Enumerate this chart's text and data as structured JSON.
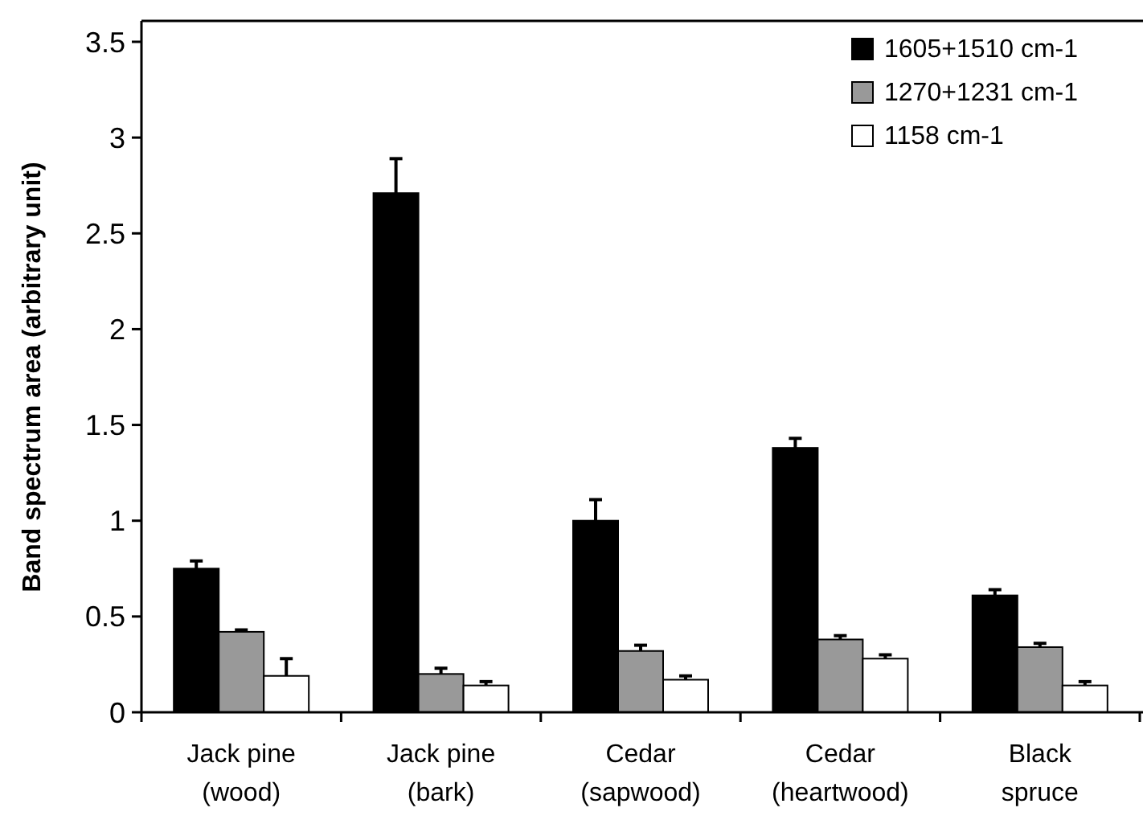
{
  "chart_data": {
    "type": "bar",
    "ylabel": "Band spectrum area (arbitrary unit)",
    "categories": [
      "Jack pine (wood)",
      "Jack pine (bark)",
      "Cedar (sapwood)",
      "Cedar (heartwood)",
      "Black spruce"
    ],
    "series": [
      {
        "name": "1605+1510 cm-1",
        "color": "#000000",
        "values": [
          0.75,
          2.71,
          1.0,
          1.38,
          0.61
        ],
        "errors": [
          0.04,
          0.18,
          0.11,
          0.05,
          0.03
        ]
      },
      {
        "name": "1270+1231 cm-1",
        "color": "#999999",
        "values": [
          0.42,
          0.2,
          0.32,
          0.38,
          0.34
        ],
        "errors": [
          0.01,
          0.03,
          0.03,
          0.02,
          0.02
        ]
      },
      {
        "name": "1158 cm-1",
        "color": "#ffffff",
        "values": [
          0.19,
          0.14,
          0.17,
          0.28,
          0.14
        ],
        "errors": [
          0.09,
          0.02,
          0.02,
          0.02,
          0.02
        ]
      }
    ],
    "ylim": [
      0,
      3.5
    ],
    "yticks": [
      0,
      0.5,
      1,
      1.5,
      2,
      2.5,
      3,
      3.5
    ],
    "legend": "top right",
    "grid": false
  }
}
